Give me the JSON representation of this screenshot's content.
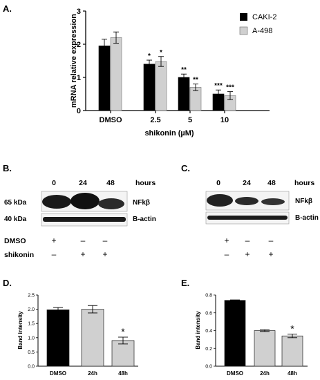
{
  "panels": {
    "A": "A.",
    "B": "B.",
    "C": "C.",
    "D": "D.",
    "E": "E."
  },
  "colors": {
    "caki": "#000000",
    "a498": "#d0d0d0",
    "blot_bg": "#f4f4f4",
    "band": "#1a1a1a"
  },
  "chart_data": [
    {
      "id": "A",
      "type": "bar",
      "categories": [
        "DMSO",
        "2.5",
        "5",
        "10"
      ],
      "series": [
        {
          "name": "CAKI-2",
          "values": [
            1.95,
            1.4,
            1.0,
            0.5
          ],
          "err": [
            0.2,
            0.12,
            0.1,
            0.12
          ],
          "sig": [
            "",
            "*",
            "**",
            "***"
          ]
        },
        {
          "name": "A-498",
          "values": [
            2.2,
            1.48,
            0.7,
            0.45
          ],
          "err": [
            0.17,
            0.15,
            0.1,
            0.12
          ],
          "sig": [
            "",
            "*",
            "**",
            "***"
          ]
        }
      ],
      "xlabel": "shikonin (µM)",
      "ylabel": "mRNA relative expression",
      "ylim": [
        0,
        3
      ],
      "yticks": [
        "0",
        "1",
        "2",
        "3"
      ],
      "legend": "top-right"
    },
    {
      "id": "D",
      "type": "bar",
      "categories": [
        "DMSO",
        "24h",
        "48h"
      ],
      "values": [
        1.98,
        2.0,
        0.9
      ],
      "err": [
        0.08,
        0.13,
        0.12
      ],
      "sig": [
        "",
        "",
        "*"
      ],
      "ylabel": "Band intensity",
      "ylim": [
        0,
        2.5
      ],
      "yticks": [
        "0.0",
        "0.5",
        "1.0",
        "1.5",
        "2.0",
        "2.5"
      ]
    },
    {
      "id": "E",
      "type": "bar",
      "categories": [
        "DMSO",
        "24h",
        "48h"
      ],
      "values": [
        0.74,
        0.4,
        0.34
      ],
      "err": [
        0.005,
        0.01,
        0.02
      ],
      "sig": [
        "",
        "",
        "*"
      ],
      "ylabel": "Band intensity",
      "ylim": [
        0,
        0.8
      ],
      "yticks": [
        "0.0",
        "0.2",
        "0.4",
        "0.6",
        "0.8"
      ]
    }
  ],
  "blot_B": {
    "lanes": [
      "0",
      "24",
      "48"
    ],
    "unit": "hours",
    "markers": [
      "65 kDa",
      "40 kDa"
    ],
    "targets": [
      "NFkβ",
      "B-actin"
    ],
    "rows": [
      {
        "label": "DMSO",
        "signs": [
          "+",
          "–",
          "–"
        ]
      },
      {
        "label": "shikonin",
        "signs": [
          "–",
          "+",
          "+"
        ]
      }
    ]
  },
  "blot_C": {
    "lanes": [
      "0",
      "24",
      "48"
    ],
    "unit": "hours",
    "targets": [
      "NFkβ",
      "B-actin"
    ],
    "signs": [
      [
        "+",
        "–",
        "–"
      ],
      [
        "–",
        "+",
        "+"
      ]
    ]
  }
}
